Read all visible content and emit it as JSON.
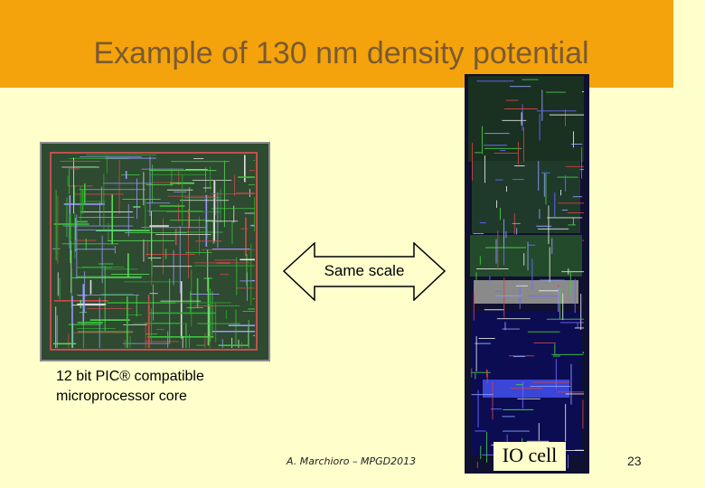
{
  "slide": {
    "title": "Example of 130 nm density potential",
    "arrow_label": "Same scale",
    "caption_line1": "12 bit PIC® compatible",
    "caption_line2": "microprocessor core",
    "footer": "A. Marchioro – MPGD2013",
    "io_label": "IO cell",
    "page_number": "23"
  },
  "colors": {
    "title_bar": "#f4a30c",
    "background": "#ffffcc",
    "title_text": "#7a5a32",
    "arrow_fill": "#ffffcc",
    "arrow_stroke": "#000000"
  },
  "images": {
    "core_layout": "chip-layout-image",
    "io_cell_layout": "io-cell-layout-image"
  }
}
